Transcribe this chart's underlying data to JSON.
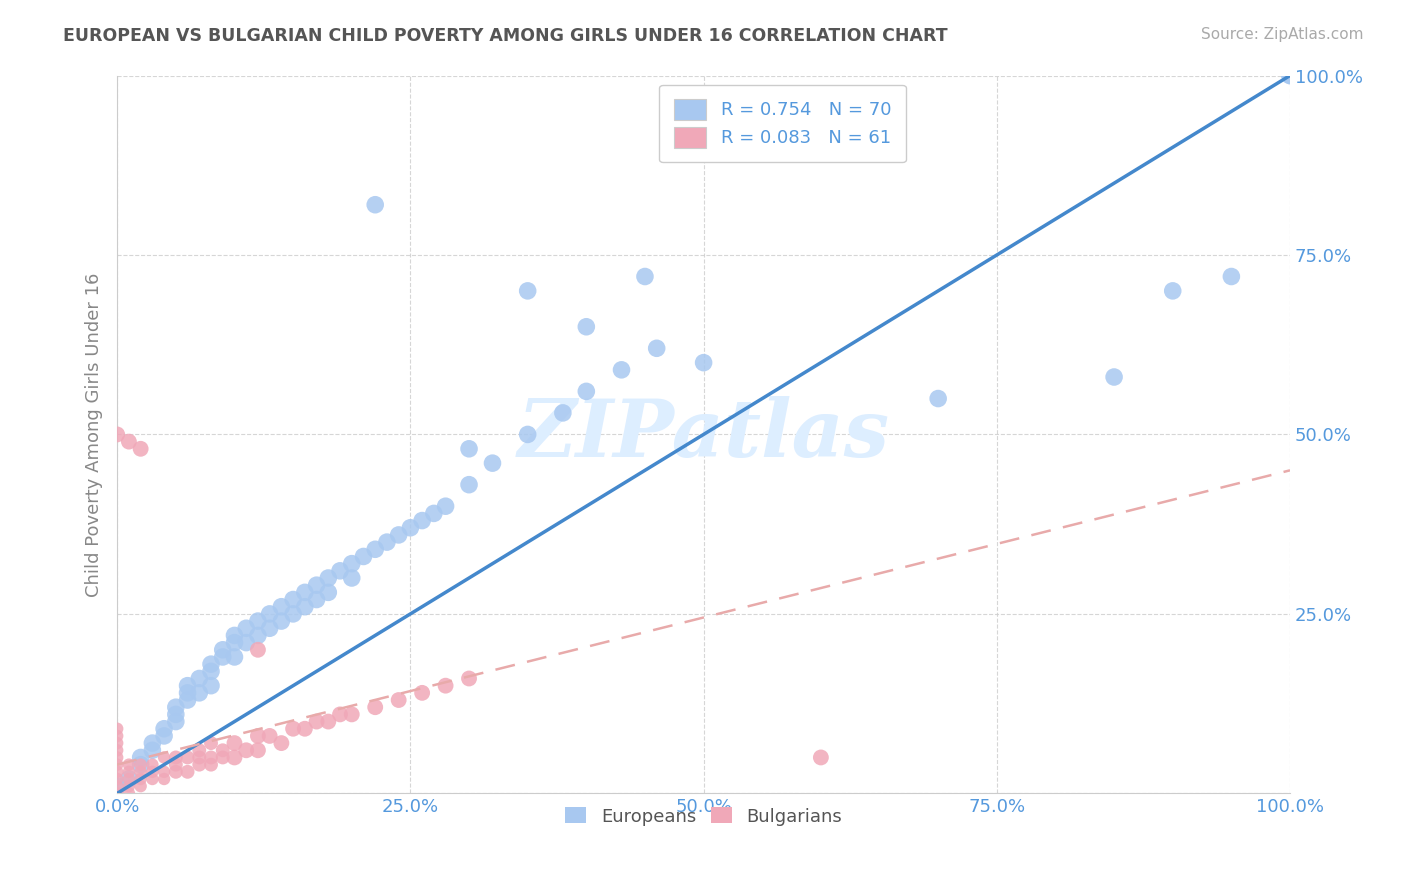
{
  "title": "EUROPEAN VS BULGARIAN CHILD POVERTY AMONG GIRLS UNDER 16 CORRELATION CHART",
  "source": "Source: ZipAtlas.com",
  "ylabel": "Child Poverty Among Girls Under 16",
  "watermark": "ZIPatlas",
  "legend_r_european": "R = 0.754",
  "legend_n_european": "N = 70",
  "legend_r_bulgarian": "R = 0.083",
  "legend_n_bulgarian": "N = 61",
  "european_color": "#a8c8f0",
  "bulgarian_color": "#f0a8b8",
  "european_line_color": "#4488cc",
  "bulgarian_line_color": "#e8aaaa",
  "title_color": "#555555",
  "tick_color": "#5599dd",
  "xlim": [
    0.0,
    1.0
  ],
  "ylim": [
    0.0,
    1.0
  ],
  "xticks": [
    0.0,
    0.25,
    0.5,
    0.75,
    1.0
  ],
  "yticks": [
    0.0,
    0.25,
    0.5,
    0.75,
    1.0
  ],
  "xticklabels": [
    "0.0%",
    "25.0%",
    "50.0%",
    "75.0%",
    "100.0%"
  ],
  "yticklabels": [
    "",
    "25.0%",
    "50.0%",
    "75.0%",
    "100.0%"
  ],
  "eu_x": [
    0.0,
    0.01,
    0.02,
    0.02,
    0.03,
    0.03,
    0.04,
    0.04,
    0.05,
    0.05,
    0.05,
    0.06,
    0.06,
    0.06,
    0.07,
    0.07,
    0.08,
    0.08,
    0.08,
    0.09,
    0.09,
    0.1,
    0.1,
    0.1,
    0.11,
    0.11,
    0.12,
    0.12,
    0.13,
    0.13,
    0.14,
    0.14,
    0.15,
    0.15,
    0.16,
    0.16,
    0.17,
    0.17,
    0.18,
    0.18,
    0.19,
    0.2,
    0.2,
    0.21,
    0.22,
    0.23,
    0.24,
    0.25,
    0.26,
    0.27,
    0.28,
    0.3,
    0.32,
    0.35,
    0.38,
    0.4,
    0.43,
    0.46,
    0.22,
    0.3,
    0.35,
    0.4,
    0.45,
    0.5,
    0.7,
    0.85,
    0.9,
    0.95,
    1.0,
    1.0
  ],
  "eu_y": [
    0.01,
    0.02,
    0.04,
    0.05,
    0.06,
    0.07,
    0.08,
    0.09,
    0.1,
    0.11,
    0.12,
    0.13,
    0.14,
    0.15,
    0.14,
    0.16,
    0.17,
    0.18,
    0.15,
    0.19,
    0.2,
    0.21,
    0.19,
    0.22,
    0.21,
    0.23,
    0.22,
    0.24,
    0.23,
    0.25,
    0.24,
    0.26,
    0.25,
    0.27,
    0.26,
    0.28,
    0.27,
    0.29,
    0.28,
    0.3,
    0.31,
    0.3,
    0.32,
    0.33,
    0.34,
    0.35,
    0.36,
    0.37,
    0.38,
    0.39,
    0.4,
    0.43,
    0.46,
    0.5,
    0.53,
    0.56,
    0.59,
    0.62,
    0.82,
    0.48,
    0.7,
    0.65,
    0.72,
    0.6,
    0.55,
    0.58,
    0.7,
    0.72,
    1.0,
    1.0
  ],
  "bg_x": [
    0.0,
    0.0,
    0.0,
    0.0,
    0.0,
    0.0,
    0.0,
    0.0,
    0.0,
    0.0,
    0.01,
    0.01,
    0.01,
    0.01,
    0.01,
    0.02,
    0.02,
    0.02,
    0.02,
    0.03,
    0.03,
    0.03,
    0.04,
    0.04,
    0.04,
    0.05,
    0.05,
    0.05,
    0.06,
    0.06,
    0.07,
    0.07,
    0.07,
    0.08,
    0.08,
    0.08,
    0.09,
    0.09,
    0.1,
    0.1,
    0.11,
    0.12,
    0.12,
    0.13,
    0.14,
    0.15,
    0.16,
    0.17,
    0.18,
    0.19,
    0.2,
    0.22,
    0.24,
    0.26,
    0.28,
    0.3,
    0.0,
    0.01,
    0.02,
    0.6,
    0.12
  ],
  "bg_y": [
    0.0,
    0.01,
    0.02,
    0.03,
    0.04,
    0.05,
    0.06,
    0.07,
    0.08,
    0.09,
    0.0,
    0.01,
    0.02,
    0.03,
    0.04,
    0.01,
    0.02,
    0.03,
    0.04,
    0.02,
    0.03,
    0.04,
    0.02,
    0.03,
    0.05,
    0.03,
    0.04,
    0.05,
    0.03,
    0.05,
    0.04,
    0.05,
    0.06,
    0.04,
    0.05,
    0.07,
    0.05,
    0.06,
    0.05,
    0.07,
    0.06,
    0.06,
    0.08,
    0.08,
    0.07,
    0.09,
    0.09,
    0.1,
    0.1,
    0.11,
    0.11,
    0.12,
    0.13,
    0.14,
    0.15,
    0.16,
    0.5,
    0.49,
    0.48,
    0.05,
    0.2
  ],
  "eu_line_x": [
    0.0,
    1.0
  ],
  "eu_line_y": [
    0.0,
    1.0
  ],
  "bg_line_x": [
    0.0,
    1.0
  ],
  "bg_line_y": [
    0.04,
    0.45
  ]
}
